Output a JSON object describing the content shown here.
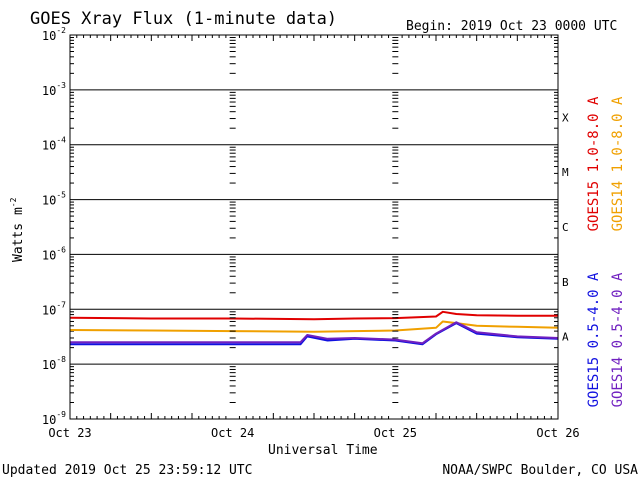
{
  "chart_data": {
    "type": "line",
    "title": "GOES Xray Flux (1-minute data)",
    "begin_label": "Begin:  2019 Oct 23 0000 UTC",
    "xlabel": "Universal Time",
    "ylabel": "Watts m",
    "ylabel_exp": "-2",
    "y_scale": "log",
    "ylim": [
      1e-09,
      0.01
    ],
    "y_ticks": [
      {
        "base": "10",
        "exp": "-2"
      },
      {
        "base": "10",
        "exp": "-3"
      },
      {
        "base": "10",
        "exp": "-4"
      },
      {
        "base": "10",
        "exp": "-5"
      },
      {
        "base": "10",
        "exp": "-6"
      },
      {
        "base": "10",
        "exp": "-7"
      },
      {
        "base": "10",
        "exp": "-8"
      },
      {
        "base": "10",
        "exp": "-9"
      }
    ],
    "x_range_days": [
      "2019-10-23",
      "2019-10-26"
    ],
    "x_ticks": [
      "Oct 23",
      "Oct 24",
      "Oct 25",
      "Oct 26"
    ],
    "flare_classes": [
      "X",
      "M",
      "C",
      "B",
      "A"
    ],
    "grid": "horizontal lines at each decade",
    "series": [
      {
        "name": "GOES15 1.0-8.0 A",
        "color": "#e00000",
        "x": [
          "2019-10-23 00:00",
          "2019-10-23 12:00",
          "2019-10-24 00:00",
          "2019-10-24 12:00",
          "2019-10-24 18:00",
          "2019-10-25 00:00",
          "2019-10-25 06:00",
          "2019-10-25 07:00",
          "2019-10-25 09:00",
          "2019-10-25 12:00",
          "2019-10-25 18:00",
          "2019-10-26 00:00"
        ],
        "values": [
          7e-08,
          6.8e-08,
          6.8e-08,
          6.6e-08,
          6.8e-08,
          6.9e-08,
          7.4e-08,
          9e-08,
          8.2e-08,
          7.8e-08,
          7.6e-08,
          7.6e-08
        ]
      },
      {
        "name": "GOES14 1.0-8.0 A",
        "color": "#f0a000",
        "x": [
          "2019-10-23 00:00",
          "2019-10-23 12:00",
          "2019-10-24 00:00",
          "2019-10-24 12:00",
          "2019-10-24 18:00",
          "2019-10-25 00:00",
          "2019-10-25 06:00",
          "2019-10-25 07:00",
          "2019-10-25 09:00",
          "2019-10-25 12:00",
          "2019-10-25 18:00",
          "2019-10-26 00:00"
        ],
        "values": [
          4.2e-08,
          4.1e-08,
          4e-08,
          3.9e-08,
          4e-08,
          4.1e-08,
          4.6e-08,
          6e-08,
          5.6e-08,
          5e-08,
          4.8e-08,
          4.6e-08
        ]
      },
      {
        "name": "GOES15 0.5-4.0 A",
        "color": "#1010e0",
        "x": [
          "2019-10-23 00:00",
          "2019-10-23 12:00",
          "2019-10-24 00:00",
          "2019-10-24 10:00",
          "2019-10-24 11:00",
          "2019-10-24 14:00",
          "2019-10-24 18:00",
          "2019-10-25 00:00",
          "2019-10-25 04:00",
          "2019-10-25 06:00",
          "2019-10-25 09:00",
          "2019-10-25 12:00",
          "2019-10-25 18:00",
          "2019-10-26 00:00"
        ],
        "values": [
          2.3e-08,
          2.3e-08,
          2.3e-08,
          2.3e-08,
          3.2e-08,
          2.7e-08,
          2.9e-08,
          2.7e-08,
          2.3e-08,
          3.5e-08,
          5.6e-08,
          3.6e-08,
          3.1e-08,
          2.9e-08
        ]
      },
      {
        "name": "GOES14 0.5-4.0 A",
        "color": "#7020c0",
        "x": [
          "2019-10-23 00:00",
          "2019-10-23 12:00",
          "2019-10-24 00:00",
          "2019-10-24 10:00",
          "2019-10-24 11:00",
          "2019-10-24 14:00",
          "2019-10-24 18:00",
          "2019-10-25 00:00",
          "2019-10-25 04:00",
          "2019-10-25 06:00",
          "2019-10-25 09:00",
          "2019-10-25 12:00",
          "2019-10-25 18:00",
          "2019-10-26 00:00"
        ],
        "values": [
          2.5e-08,
          2.5e-08,
          2.5e-08,
          2.5e-08,
          3.4e-08,
          2.9e-08,
          3e-08,
          2.8e-08,
          2.4e-08,
          3.6e-08,
          5.8e-08,
          3.8e-08,
          3.2e-08,
          3e-08
        ]
      }
    ],
    "footer_left": "Updated 2019 Oct 25 23:59:12 UTC",
    "footer_right": "NOAA/SWPC Boulder, CO USA"
  }
}
